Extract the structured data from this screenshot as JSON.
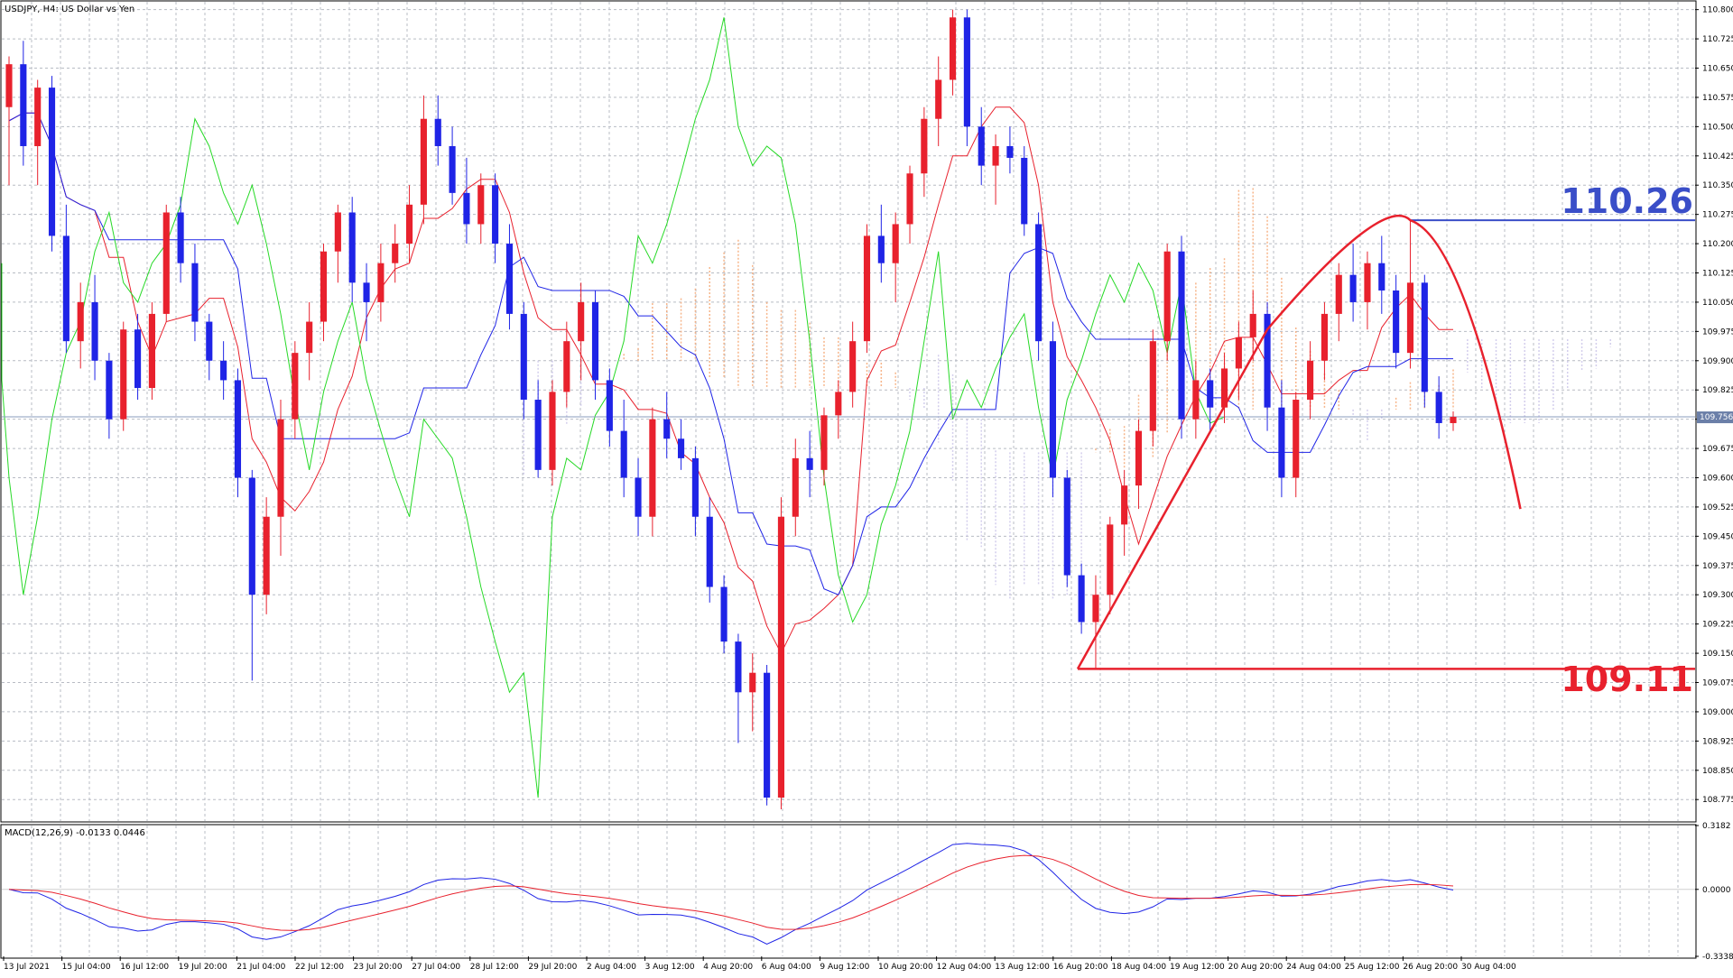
{
  "header": {
    "symbol_title": "USDJPY, H4:  US Dollar vs Yen",
    "macd_title": "MACD(12,26,9) -0.0133 0.0446"
  },
  "price_labels": {
    "top": "110.26",
    "bottom": "109.11",
    "current": "109.756"
  },
  "colors": {
    "bull_candle": "#e8212d",
    "bear_candle": "#1f24e6",
    "tenkan": "#e8212d",
    "kijun": "#1f24e6",
    "chikou": "#26d926",
    "cloud_up": "#f5a36e",
    "cloud_down": "#c9c3e8",
    "annotation_red": "#e8212d",
    "annotation_blue": "#3a4ec8",
    "grid": "#b8bcc4"
  },
  "chart_data": [
    {
      "type": "candlestick",
      "title": "USDJPY, H4:  US Dollar vs Yen",
      "indicators": [
        "Ichimoku Kinko Hyo (tenkan, kijun, chikou, kumo cloud)"
      ],
      "grid": true,
      "ylim": [
        108.72,
        110.82
      ],
      "y_ticks": [
        "110.800",
        "110.725",
        "110.650",
        "110.575",
        "110.500",
        "110.425",
        "110.350",
        "110.275",
        "110.200",
        "110.125",
        "110.050",
        "109.975",
        "109.900",
        "109.825",
        "109.750",
        "109.675",
        "109.600",
        "109.525",
        "109.450",
        "109.375",
        "109.300",
        "109.225",
        "109.150",
        "109.075",
        "109.000",
        "108.925",
        "108.850",
        "108.775"
      ],
      "x_ticks": [
        "13 Jul 2021",
        "15 Jul 04:00",
        "16 Jul 12:00",
        "19 Jul 20:00",
        "21 Jul 04:00",
        "22 Jul 12:00",
        "23 Jul 20:00",
        "27 Jul 04:00",
        "28 Jul 12:00",
        "29 Jul 20:00",
        "2 Aug 04:00",
        "3 Aug 12:00",
        "4 Aug 20:00",
        "6 Aug 04:00",
        "9 Aug 12:00",
        "10 Aug 20:00",
        "12 Aug 04:00",
        "13 Aug 12:00",
        "16 Aug 20:00",
        "18 Aug 04:00",
        "19 Aug 12:00",
        "20 Aug 20:00",
        "24 Aug 04:00",
        "25 Aug 12:00",
        "26 Aug 20:00",
        "30 Aug 04:00"
      ],
      "current_price": 109.756,
      "annotations": [
        {
          "type": "horizontal_line",
          "value": 110.26,
          "label": "110.26",
          "color": "#3a4ec8"
        },
        {
          "type": "horizontal_line",
          "value": 109.11,
          "label": "109.11",
          "color": "#e8212d"
        },
        {
          "type": "projection_curve",
          "description": "rise from 109.11 low to 110.26 peak then projected decline",
          "color": "#e8212d"
        }
      ],
      "ohlc": [
        [
          110.55,
          110.68,
          110.35,
          110.66
        ],
        [
          110.66,
          110.72,
          110.4,
          110.45
        ],
        [
          110.45,
          110.62,
          110.35,
          110.6
        ],
        [
          110.6,
          110.63,
          110.18,
          110.22
        ],
        [
          110.22,
          110.3,
          109.92,
          109.95
        ],
        [
          109.95,
          110.1,
          109.88,
          110.05
        ],
        [
          110.05,
          110.12,
          109.85,
          109.9
        ],
        [
          109.9,
          109.92,
          109.7,
          109.75
        ],
        [
          109.75,
          110.0,
          109.72,
          109.98
        ],
        [
          109.98,
          110.02,
          109.8,
          109.83
        ],
        [
          109.83,
          110.05,
          109.8,
          110.02
        ],
        [
          110.02,
          110.3,
          110.0,
          110.28
        ],
        [
          110.28,
          110.32,
          110.1,
          110.15
        ],
        [
          110.15,
          110.2,
          109.95,
          110.0
        ],
        [
          110.0,
          110.02,
          109.85,
          109.9
        ],
        [
          109.9,
          109.95,
          109.8,
          109.85
        ],
        [
          109.85,
          109.88,
          109.55,
          109.6
        ],
        [
          109.6,
          109.62,
          109.08,
          109.3
        ],
        [
          109.3,
          109.55,
          109.25,
          109.5
        ],
        [
          109.5,
          109.8,
          109.4,
          109.75
        ],
        [
          109.75,
          109.95,
          109.7,
          109.92
        ],
        [
          109.92,
          110.05,
          109.85,
          110.0
        ],
        [
          110.0,
          110.2,
          109.95,
          110.18
        ],
        [
          110.18,
          110.3,
          110.1,
          110.28
        ],
        [
          110.28,
          110.32,
          110.05,
          110.1
        ],
        [
          110.1,
          110.15,
          109.95,
          110.05
        ],
        [
          110.05,
          110.2,
          110.0,
          110.15
        ],
        [
          110.15,
          110.25,
          110.1,
          110.2
        ],
        [
          110.2,
          110.35,
          110.15,
          110.3
        ],
        [
          110.3,
          110.58,
          110.25,
          110.52
        ],
        [
          110.52,
          110.58,
          110.4,
          110.45
        ],
        [
          110.45,
          110.5,
          110.3,
          110.33
        ],
        [
          110.33,
          110.42,
          110.2,
          110.25
        ],
        [
          110.25,
          110.38,
          110.2,
          110.35
        ],
        [
          110.35,
          110.38,
          110.15,
          110.2
        ],
        [
          110.2,
          110.25,
          109.98,
          110.02
        ],
        [
          110.02,
          110.05,
          109.75,
          109.8
        ],
        [
          109.8,
          109.85,
          109.6,
          109.62
        ],
        [
          109.62,
          109.85,
          109.58,
          109.82
        ],
        [
          109.82,
          110.0,
          109.78,
          109.95
        ],
        [
          109.95,
          110.1,
          109.85,
          110.05
        ],
        [
          110.05,
          110.08,
          109.8,
          109.85
        ],
        [
          109.85,
          109.88,
          109.68,
          109.72
        ],
        [
          109.72,
          109.8,
          109.55,
          109.6
        ],
        [
          109.6,
          109.65,
          109.45,
          109.5
        ],
        [
          109.5,
          109.78,
          109.45,
          109.75
        ],
        [
          109.75,
          109.82,
          109.65,
          109.7
        ],
        [
          109.7,
          109.75,
          109.62,
          109.65
        ],
        [
          109.65,
          109.68,
          109.45,
          109.5
        ],
        [
          109.5,
          109.55,
          109.28,
          109.32
        ],
        [
          109.32,
          109.35,
          109.15,
          109.18
        ],
        [
          109.18,
          109.2,
          108.92,
          109.05
        ],
        [
          109.05,
          109.15,
          108.95,
          109.1
        ],
        [
          109.1,
          109.12,
          108.76,
          108.78
        ],
        [
          108.78,
          109.55,
          108.75,
          109.5
        ],
        [
          109.5,
          109.7,
          109.45,
          109.65
        ],
        [
          109.65,
          109.72,
          109.55,
          109.62
        ],
        [
          109.62,
          109.78,
          109.58,
          109.76
        ],
        [
          109.76,
          109.85,
          109.7,
          109.82
        ],
        [
          109.82,
          110.0,
          109.78,
          109.95
        ],
        [
          109.95,
          110.25,
          109.92,
          110.22
        ],
        [
          110.22,
          110.3,
          110.1,
          110.15
        ],
        [
          110.15,
          110.28,
          110.05,
          110.25
        ],
        [
          110.25,
          110.4,
          110.2,
          110.38
        ],
        [
          110.38,
          110.55,
          110.32,
          110.52
        ],
        [
          110.52,
          110.68,
          110.45,
          110.62
        ],
        [
          110.62,
          110.8,
          110.58,
          110.78
        ],
        [
          110.78,
          110.8,
          110.45,
          110.5
        ],
        [
          110.5,
          110.55,
          110.35,
          110.4
        ],
        [
          110.4,
          110.48,
          110.3,
          110.45
        ],
        [
          110.45,
          110.5,
          110.38,
          110.42
        ],
        [
          110.42,
          110.45,
          110.22,
          110.25
        ],
        [
          110.25,
          110.28,
          109.9,
          109.95
        ],
        [
          109.95,
          110.0,
          109.55,
          109.6
        ],
        [
          109.6,
          109.62,
          109.32,
          109.35
        ],
        [
          109.35,
          109.38,
          109.2,
          109.23
        ],
        [
          109.23,
          109.35,
          109.11,
          109.3
        ],
        [
          109.3,
          109.5,
          109.25,
          109.48
        ],
        [
          109.48,
          109.62,
          109.4,
          109.58
        ],
        [
          109.58,
          109.75,
          109.52,
          109.72
        ],
        [
          109.72,
          109.98,
          109.68,
          109.95
        ],
        [
          109.95,
          110.2,
          109.9,
          110.18
        ],
        [
          110.18,
          110.22,
          109.7,
          109.75
        ],
        [
          109.75,
          109.9,
          109.7,
          109.85
        ],
        [
          109.85,
          109.88,
          109.72,
          109.78
        ],
        [
          109.78,
          109.92,
          109.74,
          109.88
        ],
        [
          109.88,
          110.0,
          109.8,
          109.96
        ],
        [
          109.96,
          110.08,
          109.9,
          110.02
        ],
        [
          110.02,
          110.05,
          109.72,
          109.78
        ],
        [
          109.78,
          109.85,
          109.55,
          109.6
        ],
        [
          109.6,
          109.82,
          109.55,
          109.8
        ],
        [
          109.8,
          109.95,
          109.75,
          109.9
        ],
        [
          109.9,
          110.05,
          109.85,
          110.02
        ],
        [
          110.02,
          110.15,
          109.95,
          110.12
        ],
        [
          110.12,
          110.2,
          110.0,
          110.05
        ],
        [
          110.05,
          110.18,
          109.98,
          110.15
        ],
        [
          110.15,
          110.22,
          110.02,
          110.08
        ],
        [
          110.08,
          110.12,
          109.88,
          109.92
        ],
        [
          109.92,
          110.26,
          109.88,
          110.1
        ],
        [
          110.1,
          110.12,
          109.78,
          109.82
        ],
        [
          109.82,
          109.86,
          109.7,
          109.74
        ],
        [
          109.74,
          109.77,
          109.72,
          109.756
        ]
      ]
    },
    {
      "type": "line",
      "title": "MACD(12,26,9) -0.0133 0.0446",
      "series_labels": [
        "MACD",
        "Signal"
      ],
      "last_values": {
        "MACD": -0.0133,
        "Signal": 0.0446
      },
      "ylim": [
        -0.3338,
        0.3182
      ],
      "y_ticks": [
        "0.3182",
        "0.0000",
        "-0.3338"
      ]
    }
  ]
}
